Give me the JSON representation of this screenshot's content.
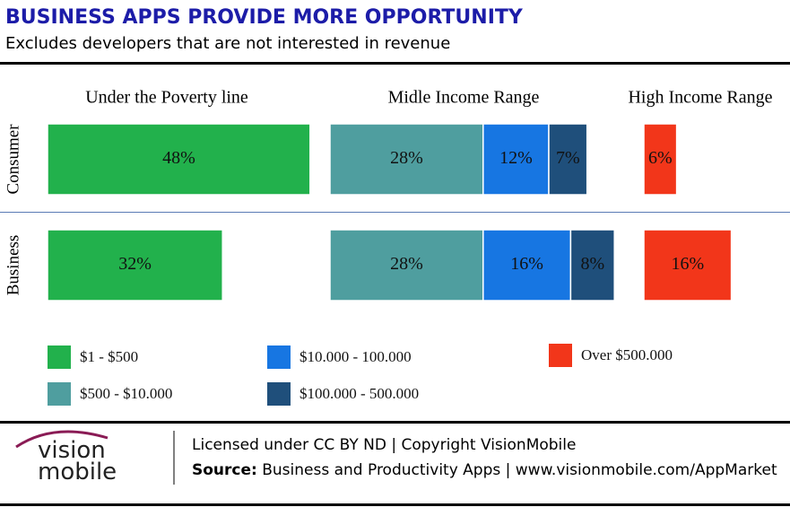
{
  "chart_data": {
    "type": "bar",
    "title": "BUSINESS APPS PROVIDE MORE OPPORTUNITY",
    "subtitle": "Excludes developers that are not interested in revenue",
    "categories": [
      "Consumer",
      "Business"
    ],
    "groups": [
      {
        "label": "Under the Poverty line",
        "series": [
          {
            "name": "$1 - $500",
            "color": "#22b14c",
            "values": [
              48,
              32
            ],
            "value_labels": [
              "48%",
              "32%"
            ]
          }
        ]
      },
      {
        "label": "Midle Income Range",
        "series": [
          {
            "name": "$500 - $10.000",
            "color": "#4f9e9f",
            "values": [
              28,
              28
            ],
            "value_labels": [
              "28%",
              "28%"
            ]
          },
          {
            "name": "$10.000 - 100.000",
            "color": "#1776e2",
            "values": [
              12,
              16
            ],
            "value_labels": [
              "12%",
              "16%"
            ]
          },
          {
            "name": "$100.000 - 500.000",
            "color": "#1f4f7b",
            "values": [
              7,
              8
            ],
            "value_labels": [
              "7%",
              "8%"
            ]
          }
        ]
      },
      {
        "label": "High Income Range",
        "series": [
          {
            "name": "Over $500.000",
            "color": "#f2361a",
            "values": [
              6,
              16
            ],
            "value_labels": [
              "6%",
              "16%"
            ]
          }
        ]
      }
    ]
  },
  "footer": {
    "logo_top": "vision",
    "logo_bottom": "mobile",
    "license": "Licensed under CC BY ND | Copyright VisionMobile",
    "source_label": "Source:",
    "source": "Business and Productivity Apps | www.visionmobile.com/AppMarket"
  }
}
